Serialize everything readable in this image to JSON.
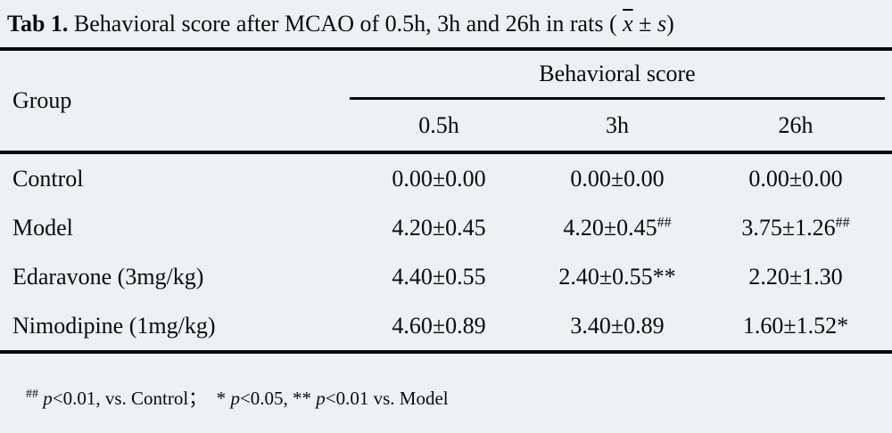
{
  "page": {
    "background_color": "#eef1f4",
    "rule_color": "#0a0a0a",
    "text_color": "#0a0a0a"
  },
  "title": {
    "segments": [
      {
        "text": "Tab 1.",
        "style": "bold"
      },
      {
        "text": " Behavioral score after MCAO of 0.5h, 3h and 26h in rats ( ",
        "style": "normal"
      },
      {
        "text": "x",
        "style": "italic-overline"
      },
      {
        "text": " ± ",
        "style": "normal"
      },
      {
        "text": "s",
        "style": "italic"
      },
      {
        "text": ")",
        "style": "normal"
      }
    ]
  },
  "table": {
    "header": {
      "group_label": "Group",
      "spanner_label": "Behavioral score",
      "sub_columns": [
        "0.5h",
        "3h",
        "26h"
      ]
    },
    "rows": [
      {
        "group": "Control",
        "values": [
          {
            "text": "0.00±0.00",
            "sup": ""
          },
          {
            "text": "0.00±0.00",
            "sup": ""
          },
          {
            "text": "0.00±0.00",
            "sup": ""
          }
        ]
      },
      {
        "group": "Model",
        "values": [
          {
            "text": "4.20±0.45",
            "sup": ""
          },
          {
            "text": "4.20±0.45",
            "sup": "##"
          },
          {
            "text": "3.75±1.26",
            "sup": "##"
          }
        ]
      },
      {
        "group": "Edaravone (3mg/kg)",
        "values": [
          {
            "text": "4.40±0.55",
            "sup": ""
          },
          {
            "text": "2.40±0.55**",
            "sup": ""
          },
          {
            "text": "2.20±1.30",
            "sup": ""
          }
        ]
      },
      {
        "group": "Nimodipine (1mg/kg)",
        "values": [
          {
            "text": "4.60±0.89",
            "sup": ""
          },
          {
            "text": "3.40±0.89",
            "sup": ""
          },
          {
            "text": "1.60±1.52*",
            "sup": ""
          }
        ]
      }
    ]
  },
  "footnote": {
    "segments": [
      {
        "text": "##",
        "style": "sup"
      },
      {
        "text": " ",
        "style": "normal"
      },
      {
        "text": "p",
        "style": "italic"
      },
      {
        "text": "<0.01, vs. Control；  * ",
        "style": "normal"
      },
      {
        "text": "p",
        "style": "italic"
      },
      {
        "text": "<0.05, ** ",
        "style": "normal"
      },
      {
        "text": "p",
        "style": "italic"
      },
      {
        "text": "<0.01 vs. Model",
        "style": "normal"
      }
    ]
  }
}
